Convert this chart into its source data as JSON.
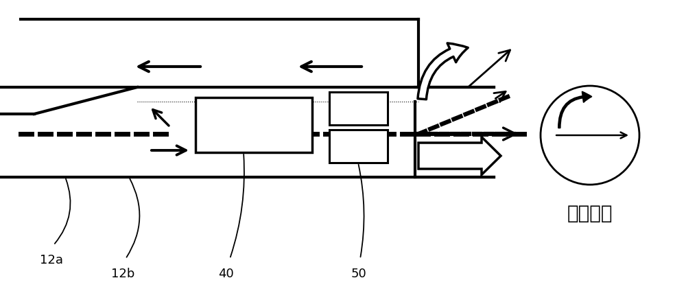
{
  "bg_color": "#ffffff",
  "line_color": "#000000",
  "label_12a": "12a",
  "label_12b": "12b",
  "label_40": "40",
  "label_50": "50",
  "label_phase": "相位布设",
  "figsize": [
    10.0,
    4.37
  ],
  "dpi": 100
}
